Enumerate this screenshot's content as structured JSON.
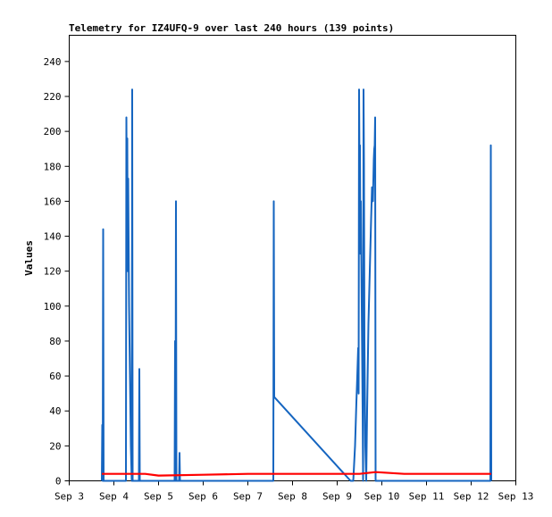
{
  "chart_data": {
    "type": "line",
    "title": "Telemetry for IZ4UFQ-9 over last 240 hours (139 points)",
    "ylabel": "Values",
    "xlabel": "",
    "ylim": [
      0,
      255
    ],
    "xlim": [
      3.0,
      13.0
    ],
    "x_ticks": [
      {
        "x": 3,
        "label": "Sep 3"
      },
      {
        "x": 4,
        "label": "Sep 4"
      },
      {
        "x": 5,
        "label": "Sep 5"
      },
      {
        "x": 6,
        "label": "Sep 6"
      },
      {
        "x": 7,
        "label": "Sep 7"
      },
      {
        "x": 8,
        "label": "Sep 8"
      },
      {
        "x": 9,
        "label": "Sep 9"
      },
      {
        "x": 10,
        "label": "Sep 10"
      },
      {
        "x": 11,
        "label": "Sep 11"
      },
      {
        "x": 12,
        "label": "Sep 12"
      },
      {
        "x": 13,
        "label": "Sep 13"
      }
    ],
    "y_ticks": [
      0,
      20,
      40,
      60,
      80,
      100,
      120,
      140,
      160,
      180,
      200,
      220,
      240
    ],
    "grid": false,
    "legend": false,
    "series": [
      {
        "color": "#1565c0",
        "points": [
          [
            3.73,
            0
          ],
          [
            3.74,
            32
          ],
          [
            3.75,
            0
          ],
          [
            3.76,
            144
          ],
          [
            3.77,
            0
          ],
          [
            4.27,
            0
          ],
          [
            4.28,
            208
          ],
          [
            4.29,
            150
          ],
          [
            4.3,
            196
          ],
          [
            4.31,
            120
          ],
          [
            4.32,
            173
          ],
          [
            4.34,
            100
          ],
          [
            4.36,
            60
          ],
          [
            4.38,
            20
          ],
          [
            4.4,
            0
          ],
          [
            4.41,
            224
          ],
          [
            4.42,
            0
          ],
          [
            4.56,
            0
          ],
          [
            4.57,
            64
          ],
          [
            4.58,
            0
          ],
          [
            5.36,
            0
          ],
          [
            5.37,
            80
          ],
          [
            5.38,
            0
          ],
          [
            5.39,
            160
          ],
          [
            5.4,
            0
          ],
          [
            5.46,
            0
          ],
          [
            5.47,
            16
          ],
          [
            5.48,
            0
          ],
          [
            7.57,
            0
          ],
          [
            7.58,
            160
          ],
          [
            7.59,
            48
          ],
          [
            9.3,
            0
          ],
          [
            9.36,
            0
          ],
          [
            9.4,
            20
          ],
          [
            9.43,
            45
          ],
          [
            9.45,
            60
          ],
          [
            9.47,
            76
          ],
          [
            9.48,
            50
          ],
          [
            9.49,
            224
          ],
          [
            9.5,
            180
          ],
          [
            9.51,
            192
          ],
          [
            9.52,
            130
          ],
          [
            9.53,
            160
          ],
          [
            9.55,
            100
          ],
          [
            9.57,
            40
          ],
          [
            9.58,
            0
          ],
          [
            9.59,
            224
          ],
          [
            9.6,
            180
          ],
          [
            9.61,
            80
          ],
          [
            9.63,
            20
          ],
          [
            9.65,
            0
          ],
          [
            9.67,
            40
          ],
          [
            9.7,
            90
          ],
          [
            9.73,
            120
          ],
          [
            9.76,
            150
          ],
          [
            9.78,
            168
          ],
          [
            9.8,
            160
          ],
          [
            9.82,
            184
          ],
          [
            9.83,
            190
          ],
          [
            9.84,
            192
          ],
          [
            9.85,
            208
          ],
          [
            9.86,
            0
          ],
          [
            12.43,
            0
          ],
          [
            12.44,
            192
          ],
          [
            12.45,
            0
          ]
        ]
      },
      {
        "color": "#ff0000",
        "points": [
          [
            3.73,
            4
          ],
          [
            4.7,
            4
          ],
          [
            5.0,
            3
          ],
          [
            6.0,
            3.5
          ],
          [
            7.0,
            4
          ],
          [
            8.0,
            4
          ],
          [
            9.3,
            4
          ],
          [
            9.5,
            4
          ],
          [
            9.86,
            5
          ],
          [
            10.5,
            4
          ],
          [
            12.45,
            4
          ]
        ]
      }
    ]
  }
}
